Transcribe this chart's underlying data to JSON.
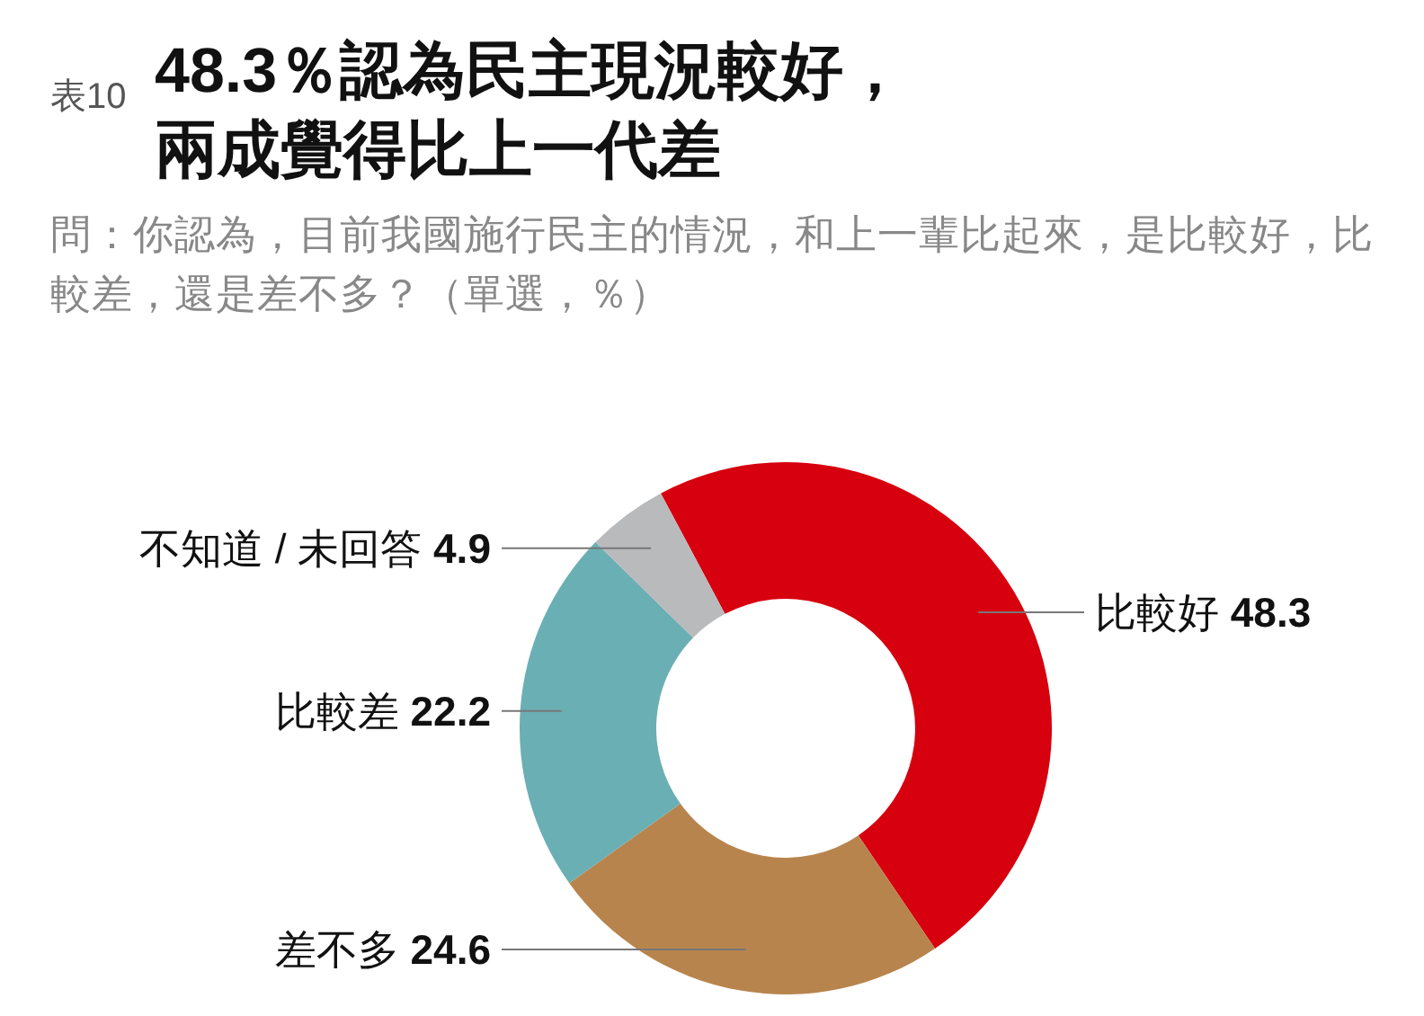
{
  "chart_data": {
    "type": "donut",
    "title": "48.3％認為民主現況較好，兩成覺得比上一代差",
    "subtitle": "問：你認為，目前我國施行民主的情況，和上一輩比起來，是比較好，比較差，還是差不多？（單選，％）",
    "annotations": [
      "表10"
    ],
    "categories": [
      "比較好",
      "差不多",
      "比較差",
      "不知道 / 未回答"
    ],
    "values": [
      48.3,
      24.6,
      22.2,
      4.9
    ],
    "colors": [
      "#d7000f",
      "#b8844d",
      "#6aafb4",
      "#b9babc"
    ],
    "data_labels": true
  }
}
